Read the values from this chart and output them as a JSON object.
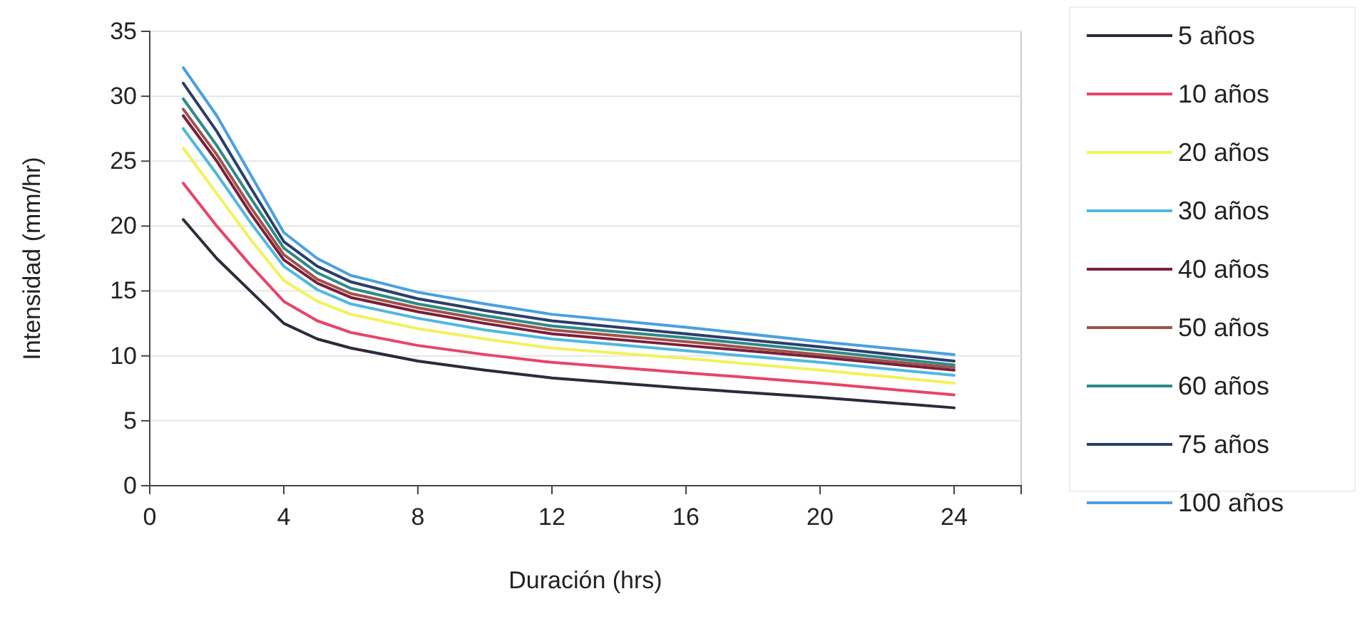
{
  "chart_data": {
    "type": "line",
    "xlabel": "Duración (hrs)",
    "ylabel": "Intensidad (mm/hr)",
    "x": [
      1,
      2,
      3,
      4,
      5,
      6,
      8,
      10,
      12,
      16,
      20,
      24
    ],
    "xlim": [
      0,
      26
    ],
    "xticks": [
      0,
      4,
      8,
      12,
      16,
      20,
      24
    ],
    "ylim": [
      0,
      35
    ],
    "yticks": [
      0,
      5,
      10,
      15,
      20,
      25,
      30,
      35
    ],
    "grid": "y",
    "legend": "right",
    "marker": "none",
    "line_style": "solid",
    "series": [
      {
        "name": "5 años",
        "color": "#2b2b3a",
        "values": [
          20.5,
          17.5,
          15,
          12.5,
          11.3,
          10.6,
          9.6,
          8.9,
          8.3,
          7.5,
          6.8,
          6.0
        ]
      },
      {
        "name": "10 años",
        "color": "#e8446a",
        "values": [
          23.3,
          20,
          17,
          14.2,
          12.7,
          11.8,
          10.8,
          10.1,
          9.5,
          8.7,
          7.9,
          7.0
        ]
      },
      {
        "name": "20 años",
        "color": "#f2f25a",
        "values": [
          26,
          22.5,
          19,
          15.8,
          14.2,
          13.2,
          12.1,
          11.3,
          10.6,
          9.8,
          8.9,
          7.9
        ]
      },
      {
        "name": "30 años",
        "color": "#4fb8e0",
        "values": [
          27.5,
          24,
          20.3,
          16.9,
          15.1,
          14.0,
          12.9,
          12.0,
          11.3,
          10.4,
          9.5,
          8.5
        ]
      },
      {
        "name": "40 años",
        "color": "#7a1f3d",
        "values": [
          28.5,
          25,
          21,
          17.4,
          15.6,
          14.5,
          13.4,
          12.5,
          11.7,
          10.8,
          9.9,
          8.9
        ]
      },
      {
        "name": "50 años",
        "color": "#a0524a",
        "values": [
          29,
          25.5,
          21.5,
          17.8,
          15.9,
          14.8,
          13.7,
          12.8,
          12.0,
          11.1,
          10.1,
          9.1
        ]
      },
      {
        "name": "60 años",
        "color": "#2e8a8a",
        "values": [
          29.8,
          26.2,
          22.2,
          18.3,
          16.4,
          15.2,
          14.0,
          13.1,
          12.3,
          11.4,
          10.4,
          9.3
        ]
      },
      {
        "name": "75 años",
        "color": "#2a3f6a",
        "values": [
          31,
          27.3,
          23,
          18.8,
          16.9,
          15.7,
          14.4,
          13.5,
          12.7,
          11.7,
          10.7,
          9.6
        ]
      },
      {
        "name": "100 años",
        "color": "#4aa0e0",
        "values": [
          32.2,
          28.5,
          24,
          19.5,
          17.5,
          16.2,
          14.9,
          14,
          13.2,
          12.2,
          11.1,
          10.1
        ]
      }
    ]
  }
}
